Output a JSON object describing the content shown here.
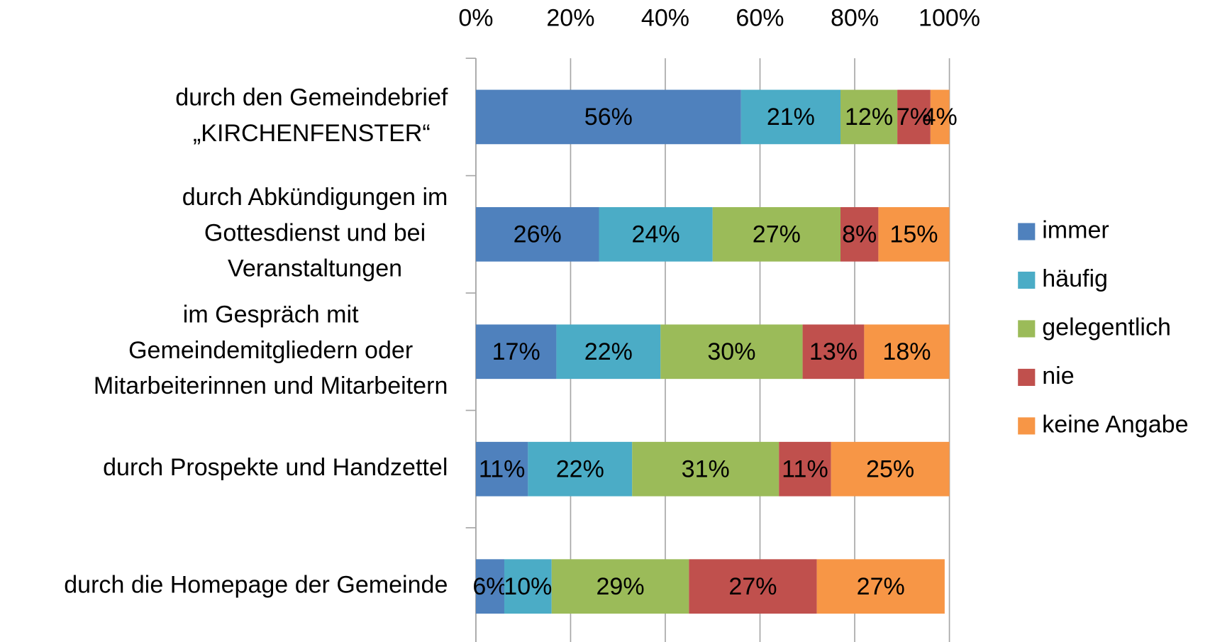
{
  "chart_data": {
    "type": "stacked-bar-horizontal",
    "categories": [
      "durch den Gemeindebrief\n„KIRCHENFENSTER“",
      "durch Abkündigungen im\nGottesdienst und bei\nVeranstaltungen",
      "im Gespräch mit\nGemeindemitgliedern oder\nMitarbeiterinnen und Mitarbeitern",
      "durch Prospekte und Handzettel",
      "durch die Homepage der Gemeinde"
    ],
    "series": [
      {
        "name": "immer",
        "color": "#4f81bd",
        "values": [
          56,
          26,
          17,
          11,
          6
        ],
        "value_labels": [
          "56%",
          "26%",
          "17%",
          "11%",
          "6%"
        ]
      },
      {
        "name": "häufig",
        "color": "#4bacc6",
        "values": [
          21,
          24,
          22,
          22,
          10
        ],
        "value_labels": [
          "21%",
          "24%",
          "22%",
          "22%",
          "10%"
        ]
      },
      {
        "name": "gelegentlich",
        "color": "#9bbb59",
        "values": [
          12,
          27,
          30,
          31,
          29
        ],
        "value_labels": [
          "12%",
          "27%",
          "30%",
          "31%",
          "29%"
        ]
      },
      {
        "name": "nie",
        "color": "#c0504d",
        "values": [
          7,
          8,
          13,
          11,
          27
        ],
        "value_labels": [
          "7%",
          "8%",
          "13%",
          "11%",
          "27%"
        ]
      },
      {
        "name": "keine Angabe",
        "color": "#f79646",
        "values": [
          4,
          15,
          18,
          25,
          27
        ],
        "value_labels": [
          "4%",
          "15%",
          "18%",
          "25%",
          "27%"
        ]
      }
    ],
    "xlim": [
      0,
      100
    ],
    "xticks": [
      {
        "value": 0,
        "label": "0%"
      },
      {
        "value": 20,
        "label": "20%"
      },
      {
        "value": 40,
        "label": "40%"
      },
      {
        "value": 60,
        "label": "60%"
      },
      {
        "value": 80,
        "label": "80%"
      },
      {
        "value": 100,
        "label": "100%"
      }
    ],
    "grid": true,
    "legend": "right"
  }
}
